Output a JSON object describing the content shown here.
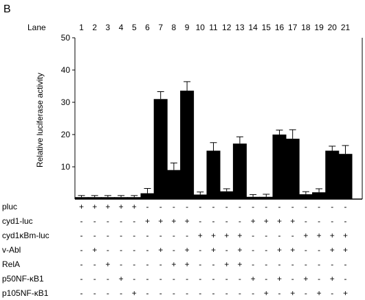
{
  "panel_label": "B",
  "lane_label": "Lane",
  "chart_data": {
    "type": "bar",
    "title": "",
    "xlabel": "",
    "ylabel": "Relative luciferase activity",
    "ylim": [
      0,
      50
    ],
    "yticks": [
      10,
      20,
      30,
      40,
      50
    ],
    "lanes": [
      "1",
      "2",
      "3",
      "4",
      "5",
      "6",
      "7",
      "8",
      "9",
      "10",
      "11",
      "12",
      "13",
      "14",
      "15",
      "16",
      "17",
      "18",
      "19",
      "20",
      "21"
    ],
    "values": [
      0.6,
      0.6,
      0.6,
      0.6,
      0.6,
      1.8,
      31,
      9,
      33.6,
      1.4,
      15,
      2.4,
      17.2,
      0.7,
      0.7,
      20,
      18.7,
      1.5,
      2.1,
      15,
      14
    ],
    "errors": [
      0.5,
      0.5,
      0.5,
      0.5,
      0.5,
      1.5,
      2.3,
      2.2,
      2.8,
      0.8,
      2.5,
      0.8,
      2.1,
      0.7,
      0.8,
      1.4,
      2.8,
      0.8,
      1.1,
      1.4,
      2.6
    ],
    "grid": false,
    "legend": "none",
    "colors": {
      "bar": "#000000",
      "axis": "#000000"
    }
  },
  "conditions": [
    {
      "label": "pluc",
      "marks": [
        "+",
        "+",
        "+",
        "+",
        "+",
        "-",
        "-",
        "-",
        "-",
        "-",
        "-",
        "-",
        "-",
        "-",
        "-",
        "-",
        "-",
        "-",
        "-",
        "-",
        "-"
      ]
    },
    {
      "label": "cyd1-luc",
      "marks": [
        "-",
        "-",
        "-",
        "-",
        "-",
        "+",
        "+",
        "+",
        "+",
        "-",
        "-",
        "-",
        "-",
        "+",
        "+",
        "+",
        "+",
        "-",
        "-",
        "-",
        "-"
      ]
    },
    {
      "label": "cyd1κBm-luc",
      "marks": [
        "-",
        "-",
        "-",
        "-",
        "-",
        "-",
        "-",
        "-",
        "-",
        "+",
        "+",
        "+",
        "+",
        "-",
        "-",
        "-",
        "-",
        "+",
        "+",
        "+",
        "+"
      ]
    },
    {
      "label": "v-Abl",
      "marks": [
        "-",
        "+",
        "-",
        "-",
        "-",
        "-",
        "+",
        "-",
        "+",
        "-",
        "+",
        "-",
        "+",
        "-",
        "-",
        "+",
        "+",
        "-",
        "-",
        "+",
        "+"
      ]
    },
    {
      "label": "RelA",
      "marks": [
        "-",
        "-",
        "+",
        "-",
        "-",
        "-",
        "-",
        "+",
        "+",
        "-",
        "-",
        "+",
        "+",
        "-",
        "-",
        "-",
        "-",
        "-",
        "-",
        "-",
        "-"
      ]
    },
    {
      "label": "p50NF-κB1",
      "marks": [
        "-",
        "-",
        "-",
        "+",
        "-",
        "-",
        "-",
        "-",
        "-",
        "-",
        "-",
        "-",
        "-",
        "+",
        "-",
        "+",
        "-",
        "+",
        "-",
        "+",
        "-"
      ]
    },
    {
      "label": "p105NF-κB1",
      "marks": [
        "-",
        "-",
        "-",
        "-",
        "+",
        "-",
        "-",
        "-",
        "-",
        "-",
        "-",
        "-",
        "-",
        "-",
        "+",
        "-",
        "+",
        "-",
        "+",
        "-",
        "+"
      ]
    }
  ]
}
